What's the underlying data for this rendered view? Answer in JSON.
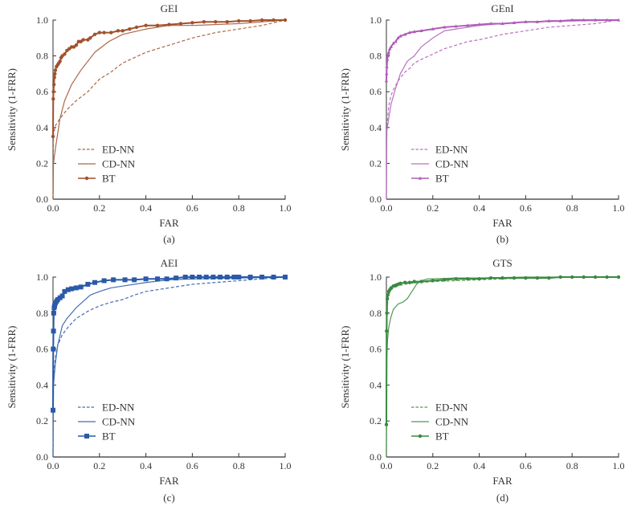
{
  "chart_data": [
    {
      "id": "a",
      "type": "line",
      "title": "GEI",
      "caption": "(a)",
      "xlabel": "FAR",
      "ylabel": "Sensitivity (1-FRR)",
      "xlim": [
        0,
        1
      ],
      "ylim": [
        0,
        1
      ],
      "xticks": [
        "0.0",
        "0.2",
        "0.4",
        "0.6",
        "0.8",
        "1.0"
      ],
      "yticks": [
        "0.0",
        "0.2",
        "0.4",
        "0.6",
        "0.8",
        "1.0"
      ],
      "grid": false,
      "legend": "bottom-left",
      "color": "#a0522d",
      "series": [
        {
          "name": "ED-NN",
          "style": "dashed",
          "marker": "none",
          "x": [
            0,
            0.002,
            0.01,
            0.03,
            0.06,
            0.1,
            0.15,
            0.2,
            0.25,
            0.3,
            0.35,
            0.4,
            0.5,
            0.6,
            0.7,
            0.8,
            0.9,
            1.0
          ],
          "y": [
            0,
            0.36,
            0.41,
            0.45,
            0.5,
            0.55,
            0.6,
            0.67,
            0.71,
            0.76,
            0.79,
            0.82,
            0.86,
            0.9,
            0.93,
            0.95,
            0.97,
            1.0
          ]
        },
        {
          "name": "CD-NN",
          "style": "solid",
          "marker": "none",
          "x": [
            0,
            0.002,
            0.01,
            0.03,
            0.05,
            0.08,
            0.12,
            0.18,
            0.24,
            0.3,
            0.4,
            0.5,
            0.6,
            0.8,
            1.0
          ],
          "y": [
            0,
            0.2,
            0.28,
            0.45,
            0.55,
            0.64,
            0.72,
            0.82,
            0.88,
            0.92,
            0.95,
            0.97,
            0.97,
            0.98,
            1.0
          ]
        },
        {
          "name": "BT",
          "style": "solid",
          "marker": "circle",
          "x": [
            0,
            0.001,
            0.002,
            0.004,
            0.006,
            0.008,
            0.01,
            0.015,
            0.02,
            0.025,
            0.03,
            0.035,
            0.04,
            0.05,
            0.06,
            0.07,
            0.08,
            0.09,
            0.1,
            0.11,
            0.12,
            0.13,
            0.15,
            0.16,
            0.18,
            0.2,
            0.22,
            0.25,
            0.28,
            0.3,
            0.33,
            0.36,
            0.4,
            0.45,
            0.5,
            0.55,
            0.6,
            0.65,
            0.7,
            0.75,
            0.8,
            0.85,
            0.9,
            0.95,
            1.0
          ],
          "y": [
            0.35,
            0.56,
            0.6,
            0.64,
            0.68,
            0.7,
            0.72,
            0.74,
            0.75,
            0.76,
            0.77,
            0.79,
            0.8,
            0.81,
            0.83,
            0.84,
            0.85,
            0.85,
            0.86,
            0.88,
            0.88,
            0.89,
            0.89,
            0.9,
            0.92,
            0.93,
            0.93,
            0.93,
            0.94,
            0.94,
            0.95,
            0.96,
            0.97,
            0.97,
            0.975,
            0.98,
            0.985,
            0.99,
            0.99,
            0.99,
            0.995,
            0.995,
            1.0,
            1.0,
            1.0
          ]
        }
      ]
    },
    {
      "id": "b",
      "type": "line",
      "title": "GEnI",
      "caption": "(b)",
      "xlabel": "FAR",
      "ylabel": "Sensitivity (1-FRR)",
      "xlim": [
        0,
        1
      ],
      "ylim": [
        0,
        1
      ],
      "xticks": [
        "0.0",
        "0.2",
        "0.4",
        "0.6",
        "0.8",
        "1.0"
      ],
      "yticks": [
        "0.0",
        "0.2",
        "0.4",
        "0.6",
        "0.8",
        "1.0"
      ],
      "grid": false,
      "legend": "bottom-left",
      "color": "#b05cb8",
      "series": [
        {
          "name": "ED-NN",
          "style": "dashed",
          "marker": "none",
          "x": [
            0,
            0.002,
            0.01,
            0.02,
            0.03,
            0.05,
            0.08,
            0.1,
            0.12,
            0.15,
            0.2,
            0.25,
            0.3,
            0.35,
            0.4,
            0.5,
            0.6,
            0.7,
            0.8,
            0.9,
            1.0
          ],
          "y": [
            0,
            0.4,
            0.52,
            0.58,
            0.61,
            0.66,
            0.71,
            0.73,
            0.76,
            0.78,
            0.81,
            0.84,
            0.86,
            0.88,
            0.89,
            0.92,
            0.94,
            0.96,
            0.97,
            0.98,
            1.0
          ]
        },
        {
          "name": "CD-NN",
          "style": "solid",
          "marker": "none",
          "x": [
            0,
            0.002,
            0.01,
            0.02,
            0.04,
            0.06,
            0.09,
            0.12,
            0.15,
            0.2,
            0.25,
            0.3,
            0.4,
            0.5,
            0.6,
            0.8,
            1.0
          ],
          "y": [
            0,
            0.38,
            0.45,
            0.53,
            0.62,
            0.7,
            0.77,
            0.8,
            0.85,
            0.9,
            0.94,
            0.95,
            0.97,
            0.98,
            0.99,
            0.995,
            1.0
          ]
        },
        {
          "name": "BT",
          "style": "solid",
          "marker": "triangle",
          "x": [
            0,
            0.001,
            0.002,
            0.004,
            0.006,
            0.008,
            0.01,
            0.015,
            0.02,
            0.03,
            0.04,
            0.05,
            0.06,
            0.08,
            0.1,
            0.12,
            0.15,
            0.2,
            0.25,
            0.3,
            0.35,
            0.4,
            0.45,
            0.5,
            0.55,
            0.6,
            0.65,
            0.7,
            0.75,
            0.8,
            0.85,
            0.9,
            0.95,
            1.0
          ],
          "y": [
            0.66,
            0.7,
            0.74,
            0.78,
            0.8,
            0.81,
            0.82,
            0.84,
            0.85,
            0.87,
            0.88,
            0.9,
            0.91,
            0.92,
            0.93,
            0.935,
            0.94,
            0.95,
            0.96,
            0.965,
            0.97,
            0.975,
            0.98,
            0.98,
            0.985,
            0.99,
            0.99,
            0.995,
            0.995,
            1.0,
            1.0,
            1.0,
            1.0,
            1.0
          ]
        }
      ]
    },
    {
      "id": "c",
      "type": "line",
      "title": "AEI",
      "caption": "(c)",
      "xlabel": "FAR",
      "ylabel": "Sensitivity (1-FRR)",
      "xlim": [
        0,
        1
      ],
      "ylim": [
        0,
        1
      ],
      "xticks": [
        "0.0",
        "0.2",
        "0.4",
        "0.6",
        "0.8",
        "1.0"
      ],
      "yticks": [
        "0.0",
        "0.2",
        "0.4",
        "0.6",
        "0.8",
        "1.0"
      ],
      "grid": false,
      "legend": "bottom-left",
      "color": "#2a5aa8",
      "series": [
        {
          "name": "ED-NN",
          "style": "dashed",
          "marker": "none",
          "x": [
            0,
            0.002,
            0.01,
            0.02,
            0.04,
            0.07,
            0.1,
            0.15,
            0.2,
            0.25,
            0.3,
            0.35,
            0.4,
            0.5,
            0.6,
            0.7,
            0.8,
            0.9,
            1.0
          ],
          "y": [
            0,
            0.45,
            0.55,
            0.62,
            0.68,
            0.73,
            0.77,
            0.81,
            0.84,
            0.86,
            0.875,
            0.9,
            0.92,
            0.94,
            0.96,
            0.97,
            0.98,
            0.99,
            1.0
          ]
        },
        {
          "name": "CD-NN",
          "style": "solid",
          "marker": "none",
          "x": [
            0,
            0.002,
            0.01,
            0.02,
            0.04,
            0.06,
            0.1,
            0.16,
            0.2,
            0.25,
            0.3,
            0.4,
            0.5,
            0.6,
            0.8,
            1.0
          ],
          "y": [
            0,
            0.4,
            0.52,
            0.62,
            0.73,
            0.77,
            0.83,
            0.9,
            0.92,
            0.94,
            0.95,
            0.97,
            0.985,
            0.99,
            0.995,
            1.0
          ]
        },
        {
          "name": "BT",
          "style": "solid",
          "marker": "square",
          "x": [
            0,
            0.001,
            0.002,
            0.003,
            0.005,
            0.007,
            0.01,
            0.015,
            0.02,
            0.03,
            0.04,
            0.05,
            0.065,
            0.08,
            0.1,
            0.12,
            0.15,
            0.18,
            0.22,
            0.26,
            0.31,
            0.35,
            0.4,
            0.45,
            0.49,
            0.53,
            0.57,
            0.6,
            0.63,
            0.66,
            0.69,
            0.72,
            0.75,
            0.78,
            0.8,
            0.85,
            0.9,
            0.95,
            1.0
          ],
          "y": [
            0.26,
            0.6,
            0.7,
            0.8,
            0.83,
            0.84,
            0.855,
            0.865,
            0.875,
            0.885,
            0.895,
            0.92,
            0.93,
            0.935,
            0.94,
            0.945,
            0.96,
            0.97,
            0.98,
            0.985,
            0.985,
            0.985,
            0.99,
            0.99,
            0.99,
            0.995,
            1.0,
            1.0,
            1.0,
            1.0,
            1.0,
            1.0,
            1.0,
            1.0,
            1.0,
            1.0,
            1.0,
            1.0,
            1.0
          ]
        }
      ]
    },
    {
      "id": "d",
      "type": "line",
      "title": "GTS",
      "caption": "(d)",
      "xlabel": "FAR",
      "ylabel": "Sensitivity (1-FRR)",
      "xlim": [
        0,
        1
      ],
      "ylim": [
        0,
        1
      ],
      "xticks": [
        "0.0",
        "0.2",
        "0.4",
        "0.6",
        "0.8",
        "1.0"
      ],
      "yticks": [
        "0.0",
        "0.2",
        "0.4",
        "0.6",
        "0.8",
        "1.0"
      ],
      "grid": false,
      "legend": "bottom-left",
      "color": "#3a8a40",
      "series": [
        {
          "name": "ED-NN",
          "style": "dashed",
          "marker": "none",
          "x": [
            0,
            0.002,
            0.005,
            0.01,
            0.02,
            0.04,
            0.06,
            0.1,
            0.15,
            0.2,
            0.3,
            0.4,
            0.5,
            0.6,
            0.8,
            1.0
          ],
          "y": [
            0,
            0.75,
            0.85,
            0.9,
            0.93,
            0.945,
            0.955,
            0.965,
            0.97,
            0.975,
            0.98,
            0.985,
            0.99,
            0.995,
            1.0,
            1.0
          ]
        },
        {
          "name": "CD-NN",
          "style": "solid",
          "marker": "none",
          "x": [
            0,
            0.002,
            0.005,
            0.01,
            0.02,
            0.03,
            0.05,
            0.07,
            0.09,
            0.11,
            0.13,
            0.15,
            0.18,
            0.2,
            0.3,
            0.4,
            0.6,
            0.8,
            1.0
          ],
          "y": [
            0,
            0.55,
            0.65,
            0.72,
            0.78,
            0.82,
            0.85,
            0.86,
            0.88,
            0.92,
            0.96,
            0.98,
            0.99,
            0.99,
            0.995,
            0.995,
            1.0,
            1.0,
            1.0
          ]
        },
        {
          "name": "BT",
          "style": "solid",
          "marker": "circle",
          "x": [
            0,
            0.001,
            0.002,
            0.004,
            0.006,
            0.01,
            0.015,
            0.02,
            0.03,
            0.04,
            0.05,
            0.06,
            0.08,
            0.1,
            0.12,
            0.15,
            0.2,
            0.25,
            0.3,
            0.35,
            0.4,
            0.45,
            0.5,
            0.55,
            0.6,
            0.65,
            0.7,
            0.75,
            0.8,
            0.85,
            0.9,
            0.95,
            1.0
          ],
          "y": [
            0.18,
            0.7,
            0.8,
            0.88,
            0.9,
            0.92,
            0.93,
            0.94,
            0.95,
            0.955,
            0.96,
            0.965,
            0.97,
            0.97,
            0.975,
            0.975,
            0.98,
            0.985,
            0.99,
            0.99,
            0.99,
            0.995,
            0.995,
            0.995,
            0.995,
            0.995,
            0.995,
            1.0,
            1.0,
            1.0,
            1.0,
            1.0,
            1.0
          ]
        }
      ]
    }
  ]
}
